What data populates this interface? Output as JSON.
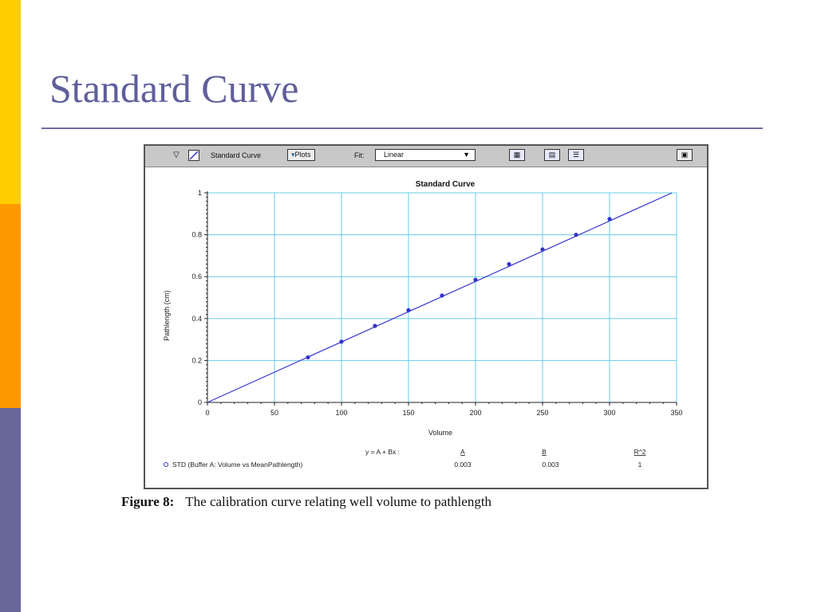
{
  "slide": {
    "title": "Standard Curve",
    "colors": {
      "title": "#5f5f9c",
      "bar_top": "#ffcc00",
      "bar_middle": "#ff9900",
      "bar_bottom": "#666699"
    }
  },
  "toolbar": {
    "collapse_icon": "triangle-down-icon",
    "curve_icon": "curve-icon",
    "title": "Standard Curve",
    "plots_button": "Plots",
    "fit_label": "Fit:",
    "fit_value": "Linear",
    "icons": [
      "plot-view-icon",
      "table-view-icon",
      "list-view-icon",
      "print-icon"
    ]
  },
  "chart_data": {
    "type": "scatter",
    "title": "Standard Curve",
    "xlabel": "Volume",
    "ylabel": "Pathlength (cm)",
    "xlim": [
      0,
      350
    ],
    "ylim": [
      0,
      1
    ],
    "x_ticks": [
      0,
      50,
      100,
      150,
      200,
      250,
      300,
      350
    ],
    "y_ticks": [
      0,
      0.2,
      0.4,
      0.6,
      0.8,
      1
    ],
    "grid": true,
    "series": [
      {
        "name": "STD (Buffer A: Volume vs MeanPathlength)",
        "color": "#3333cc",
        "x": [
          75,
          100,
          125,
          150,
          175,
          200,
          225,
          250,
          275,
          300
        ],
        "y": [
          0.215,
          0.29,
          0.365,
          0.44,
          0.51,
          0.585,
          0.66,
          0.73,
          0.8,
          0.875
        ]
      }
    ],
    "fit": {
      "type": "linear",
      "equation": "y = A + Bx :",
      "headers": [
        "A",
        "B",
        "R^2"
      ],
      "values": [
        "0.003",
        "0.003",
        "1"
      ],
      "line_x": [
        0,
        350
      ],
      "line_y": [
        0,
        1.01
      ]
    }
  },
  "caption": {
    "label": "Figure 8:",
    "text": "The calibration curve relating well volume to pathlength"
  }
}
